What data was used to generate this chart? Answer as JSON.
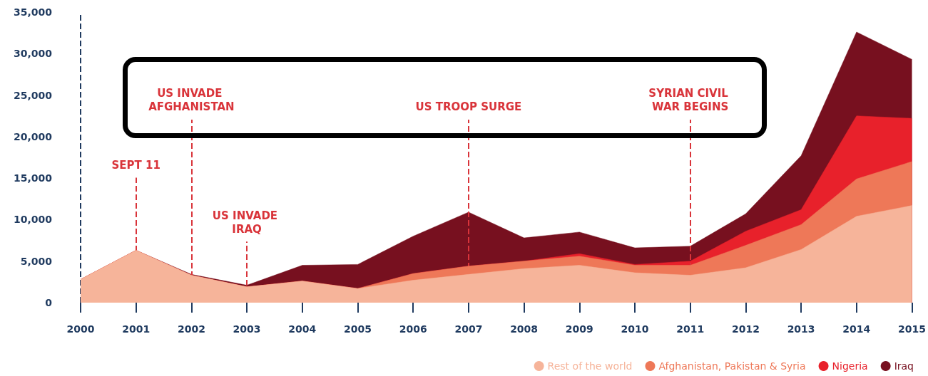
{
  "chart_data": {
    "type": "area",
    "stacked": true,
    "x": [
      2000,
      2001,
      2002,
      2003,
      2004,
      2005,
      2006,
      2007,
      2008,
      2009,
      2010,
      2011,
      2012,
      2013,
      2014,
      2015
    ],
    "series": [
      {
        "name": "Rest of the world",
        "color": "#f6b49a",
        "values": [
          2800,
          6300,
          3300,
          1900,
          2600,
          1700,
          2700,
          3400,
          4100,
          4500,
          3600,
          3300,
          4200,
          6400,
          10400,
          11700
        ]
      },
      {
        "name": "Afghanistan, Pakistan & Syria",
        "color": "#ee7858",
        "values": [
          0,
          0,
          0,
          0,
          0,
          0,
          800,
          1000,
          900,
          1100,
          900,
          1200,
          2700,
          3000,
          4500,
          5300
        ]
      },
      {
        "name": "Nigeria",
        "color": "#e8212b",
        "values": [
          0,
          0,
          0,
          0,
          0,
          0,
          0,
          0,
          0,
          300,
          100,
          500,
          1700,
          1800,
          7600,
          5200
        ]
      },
      {
        "name": "Iraq",
        "color": "#77101f",
        "values": [
          0,
          0,
          100,
          200,
          1900,
          2900,
          4500,
          6500,
          2800,
          2600,
          2000,
          1800,
          2100,
          6500,
          10100,
          7100
        ]
      }
    ],
    "xlim": [
      2000,
      2015
    ],
    "xticks": [
      2000,
      2001,
      2002,
      2003,
      2004,
      2005,
      2006,
      2007,
      2008,
      2009,
      2010,
      2011,
      2012,
      2013,
      2014,
      2015
    ],
    "ylim": [
      0,
      35000
    ],
    "yticks": [
      0,
      {
        "value": 5000,
        "label": "5,000"
      },
      {
        "value": 10000,
        "label": "10,000"
      },
      {
        "value": 15000,
        "label": "15,000"
      },
      {
        "value": 20000,
        "label": "20,000"
      },
      {
        "value": 25000,
        "label": "25,000"
      },
      {
        "value": 30000,
        "label": "30,000"
      },
      {
        "value": 35000,
        "label": "35,000"
      }
    ],
    "ref_lines": [
      {
        "axis": "x",
        "value": 2000,
        "label": null,
        "color": "#1f3a5f",
        "line_style": "dashed"
      },
      {
        "axis": "x",
        "value": 2001,
        "label": "SEPT 11",
        "color": "#d9343a",
        "line_style": "dashed"
      },
      {
        "axis": "x",
        "value": 2002,
        "label": "US INVADE AFGHANISTAN",
        "color": "#d9343a",
        "line_style": "dashed"
      },
      {
        "axis": "x",
        "value": 2003,
        "label": "US INVADE IRAQ",
        "color": "#d9343a",
        "line_style": "dashed"
      },
      {
        "axis": "x",
        "value": 2007,
        "label": "US TROOP SURGE",
        "color": "#d9343a",
        "line_style": "dashed"
      },
      {
        "axis": "x",
        "value": 2011,
        "label": "SYRIAN CIVIL WAR BEGINS",
        "color": "#d9343a",
        "line_style": "dashed"
      }
    ],
    "grid": false,
    "legend": "bottom right",
    "marker": "none",
    "line_style": "solid"
  }
}
